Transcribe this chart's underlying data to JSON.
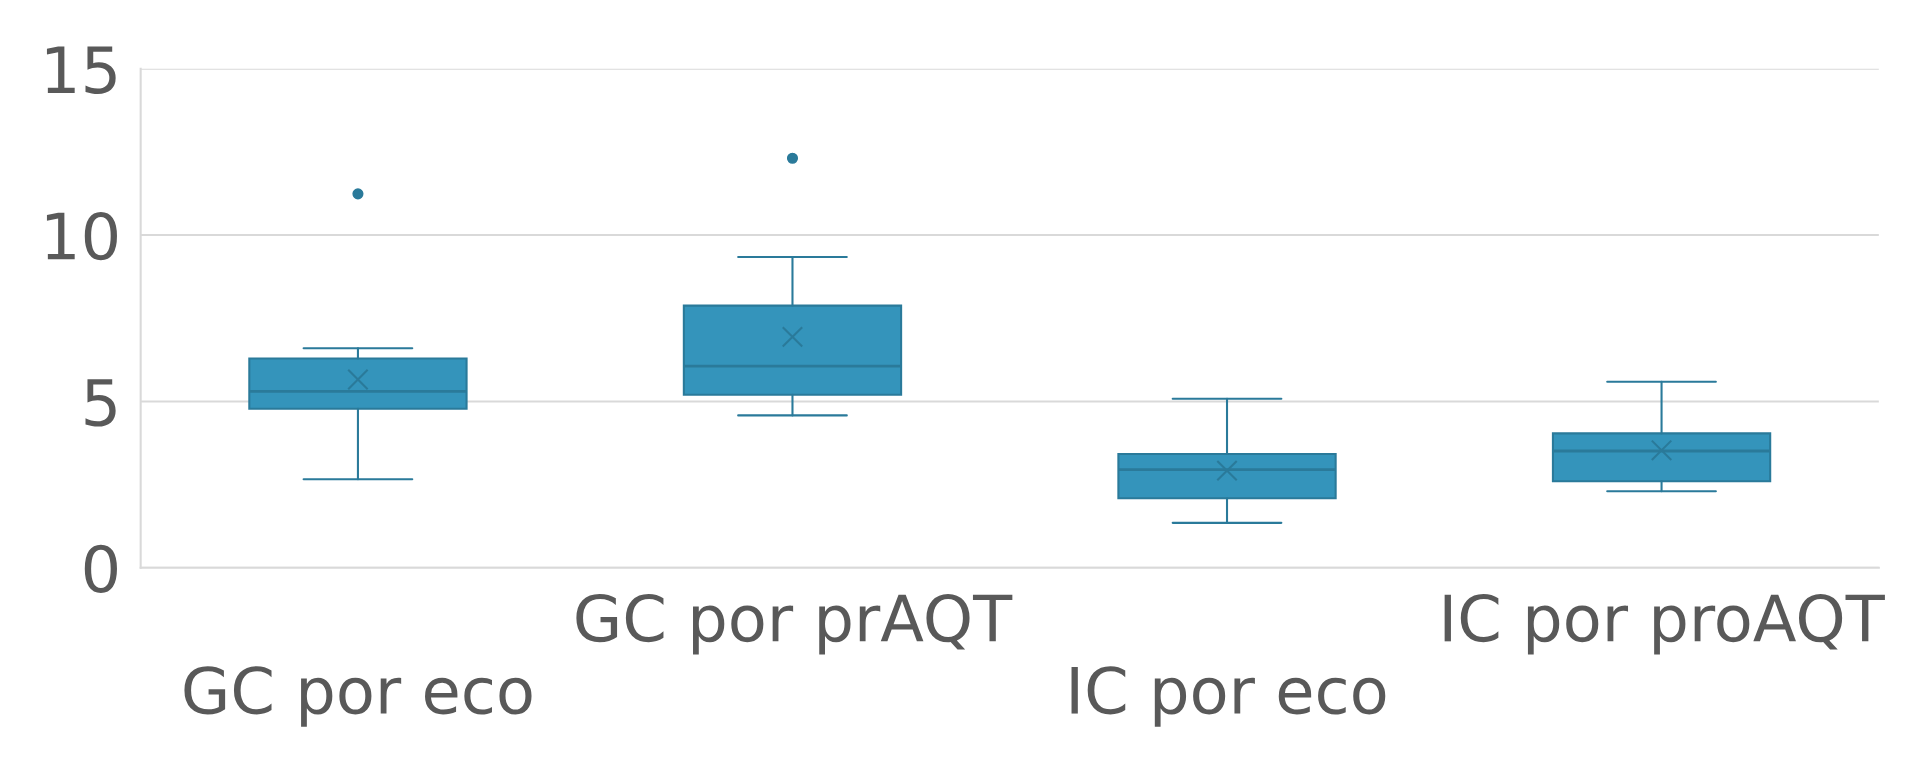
{
  "chart_data": {
    "type": "box",
    "categories": [
      "GC por eco",
      "GC por prAQT",
      "IC por eco",
      "IC por proAQT"
    ],
    "boxes": [
      {
        "low": 2.66,
        "q1": 4.78,
        "median": 5.3,
        "q3": 6.29,
        "high": 6.6,
        "mean": 5.66,
        "outliers": [
          11.24
        ]
      },
      {
        "low": 4.58,
        "q1": 5.2,
        "median": 6.06,
        "q3": 7.88,
        "high": 9.34,
        "mean": 6.94,
        "outliers": [
          12.31
        ]
      },
      {
        "low": 1.35,
        "q1": 2.09,
        "median": 2.95,
        "q3": 3.42,
        "high": 5.08,
        "mean": 2.92
      },
      {
        "low": 2.3,
        "q1": 2.6,
        "median": 3.51,
        "q3": 4.04,
        "high": 5.59,
        "mean": 3.53
      }
    ],
    "color": "#3494bb",
    "ylim": [
      0,
      15
    ],
    "yticks": [
      0,
      5,
      10,
      15
    ],
    "grid": "y"
  }
}
